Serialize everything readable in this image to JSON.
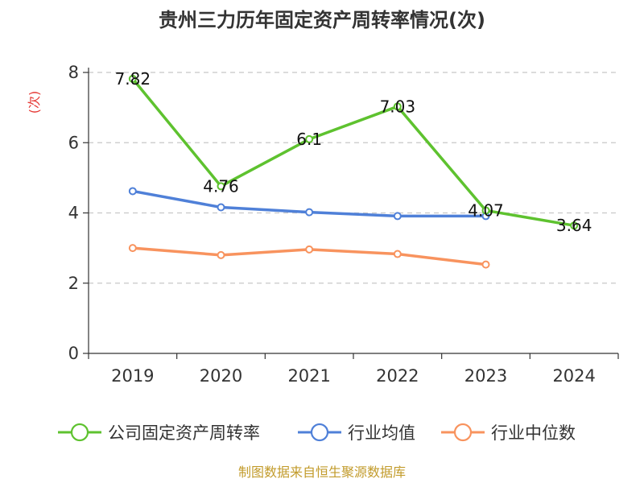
{
  "chart_data": {
    "type": "line",
    "title": "贵州三力历年固定资产周转率情况(次)",
    "ylabel": "(次)",
    "xlabel": "",
    "categories": [
      "2019",
      "2020",
      "2021",
      "2022",
      "2023",
      "2024"
    ],
    "ylim": [
      0,
      8
    ],
    "yticks": [
      0,
      2,
      4,
      6,
      8
    ],
    "grid": true,
    "legend_position": "bottom",
    "series": [
      {
        "name": "公司固定资产周转率",
        "color": "#5ec22f",
        "values": [
          7.82,
          4.76,
          6.1,
          7.03,
          4.07,
          3.64
        ],
        "data_labels": [
          "7.82",
          "4.76",
          "6.1",
          "7.03",
          "4.07",
          "3.64"
        ]
      },
      {
        "name": "行业均值",
        "color": "#4f80d8",
        "values": [
          4.62,
          4.16,
          4.02,
          3.91,
          3.91,
          null
        ]
      },
      {
        "name": "行业中位数",
        "color": "#f8935e",
        "values": [
          3.0,
          2.8,
          2.96,
          2.83,
          2.53,
          null
        ]
      }
    ]
  },
  "footer": {
    "source": "制图数据来自恒生聚源数据库"
  }
}
